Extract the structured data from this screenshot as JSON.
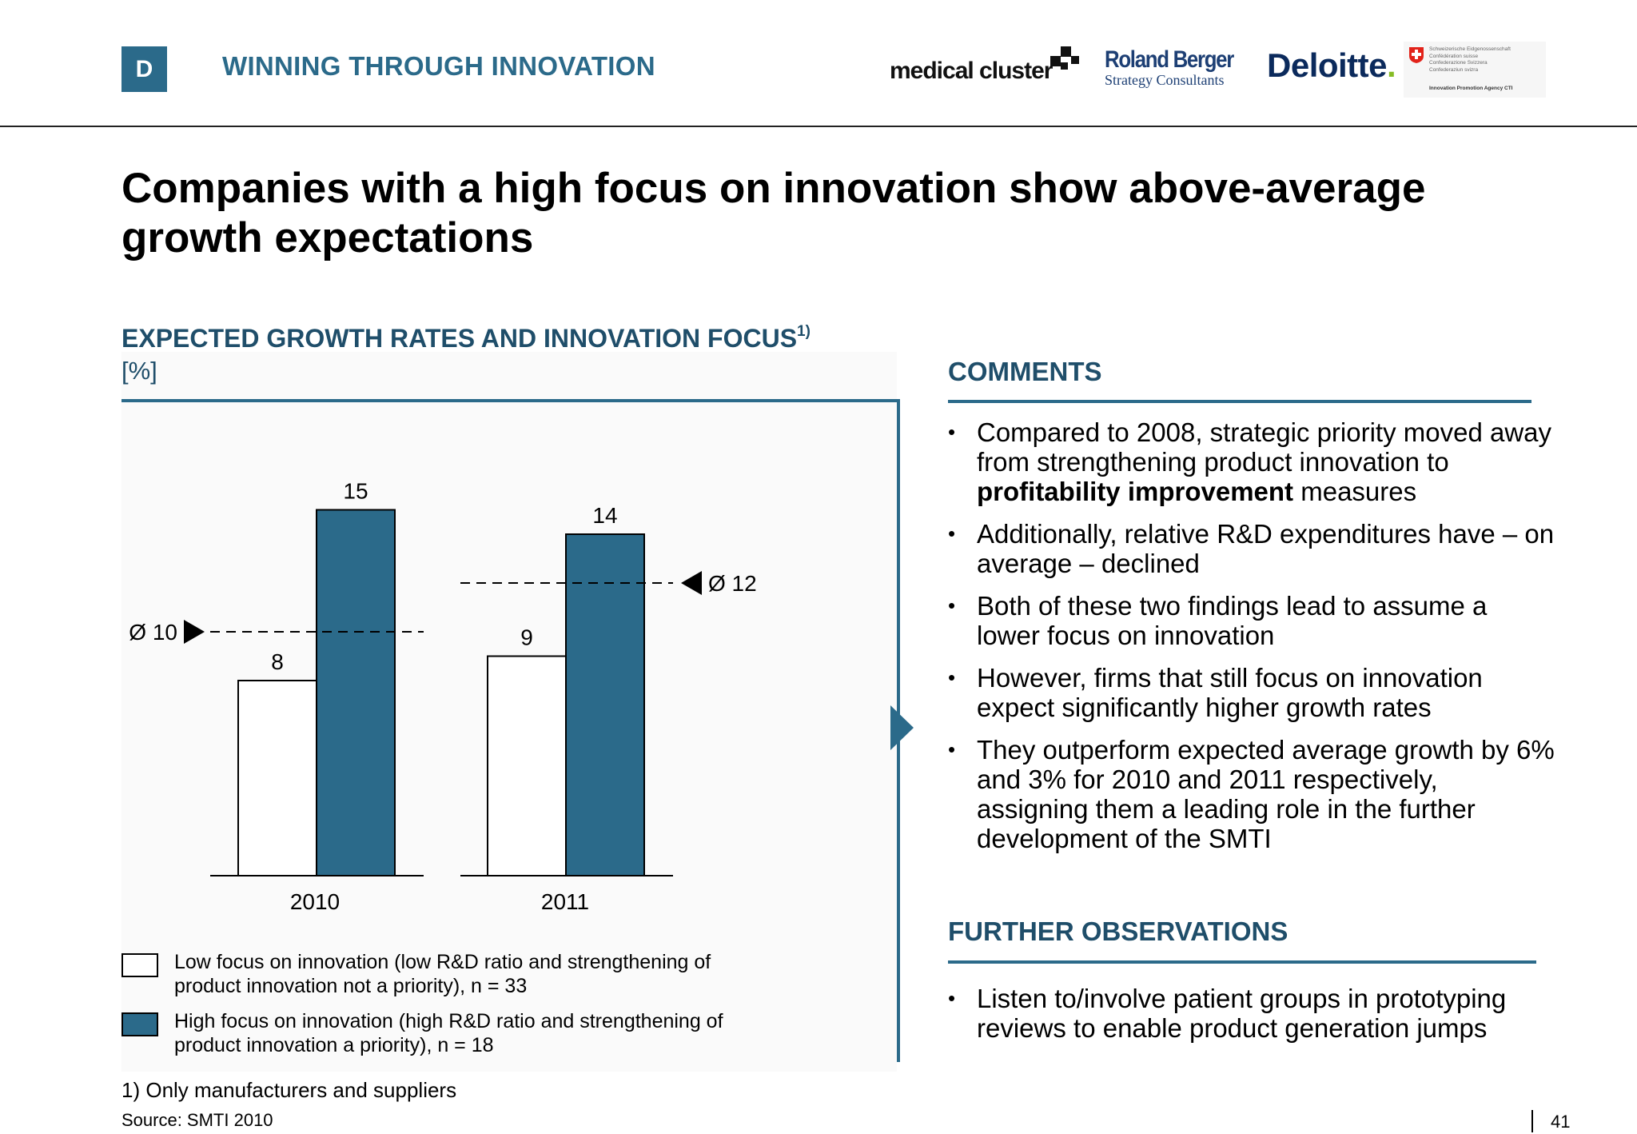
{
  "header": {
    "badge": "D",
    "section": "WINNING THROUGH INNOVATION",
    "logos": {
      "medical_cluster": "medical cluster",
      "roland_berger_name": "Roland Berger",
      "roland_berger_sub": "Strategy Consultants",
      "deloitte": "Deloitte",
      "deloitte_dot": ".",
      "swiss_lines": [
        "Schweizerische Eidgenossenschaft",
        "Confédération suisse",
        "Confederazione Svizzera",
        "Confederaziun svizra"
      ],
      "swiss_agency": "Innovation Promotion Agency CTI"
    }
  },
  "title": "Companies with a high focus on innovation show above-average growth expectations",
  "chart": {
    "title": "EXPECTED GROWTH RATES AND INNOVATION FOCUS",
    "title_sup": "1)",
    "unit": "[%]"
  },
  "chart_data": {
    "type": "bar",
    "categories": [
      "2010",
      "2011"
    ],
    "series": [
      {
        "name": "Low focus on innovation (low R&D ratio and strengthening of product innovation not a priority), n = 33",
        "values": [
          8,
          9
        ],
        "color": "#ffffff"
      },
      {
        "name": "High focus on innovation (high R&D ratio and strengthening of product innovation a priority), n = 18",
        "values": [
          15,
          14
        ],
        "color": "#2b6a8a"
      }
    ],
    "averages": [
      {
        "category": "2010",
        "value": 10,
        "label": "Ø 10"
      },
      {
        "category": "2011",
        "value": 12,
        "label": "Ø 12"
      }
    ],
    "ylim": [
      0,
      18
    ],
    "legend": "bottom"
  },
  "legend": {
    "low": "Low focus on innovation (low R&D ratio and strengthening of product innovation not a priority), n = 33",
    "high": "High focus on innovation (high R&D ratio and strengthening of product innovation a priority), n = 18"
  },
  "footnote": "1) Only manufacturers and suppliers",
  "source": "Source:  SMTI 2010",
  "comments": {
    "heading": "COMMENTS",
    "bullet1_pre": "Compared to 2008, strategic priority moved away from strengthening product innovation to ",
    "bullet1_bold": "profitability improvement",
    "bullet1_post": " measures",
    "bullet2": "Additionally, relative R&D expenditures have – on average – declined",
    "bullet3": "Both of these two findings lead to assume a lower focus on innovation",
    "bullet4": "However, firms that still focus on innovation expect significantly higher growth rates",
    "bullet5": "They outperform expected average growth by 6% and 3% for 2010 and 2011 respectively, assigning them a leading role in the further development of the SMTI"
  },
  "observations": {
    "heading": "FURTHER OBSERVATIONS",
    "bullet1": "Listen to/involve patient groups in prototyping reviews to enable product generation jumps"
  },
  "page_number": "41",
  "colors": {
    "accent": "#2b6a8a",
    "heading": "#1f4e6a"
  }
}
